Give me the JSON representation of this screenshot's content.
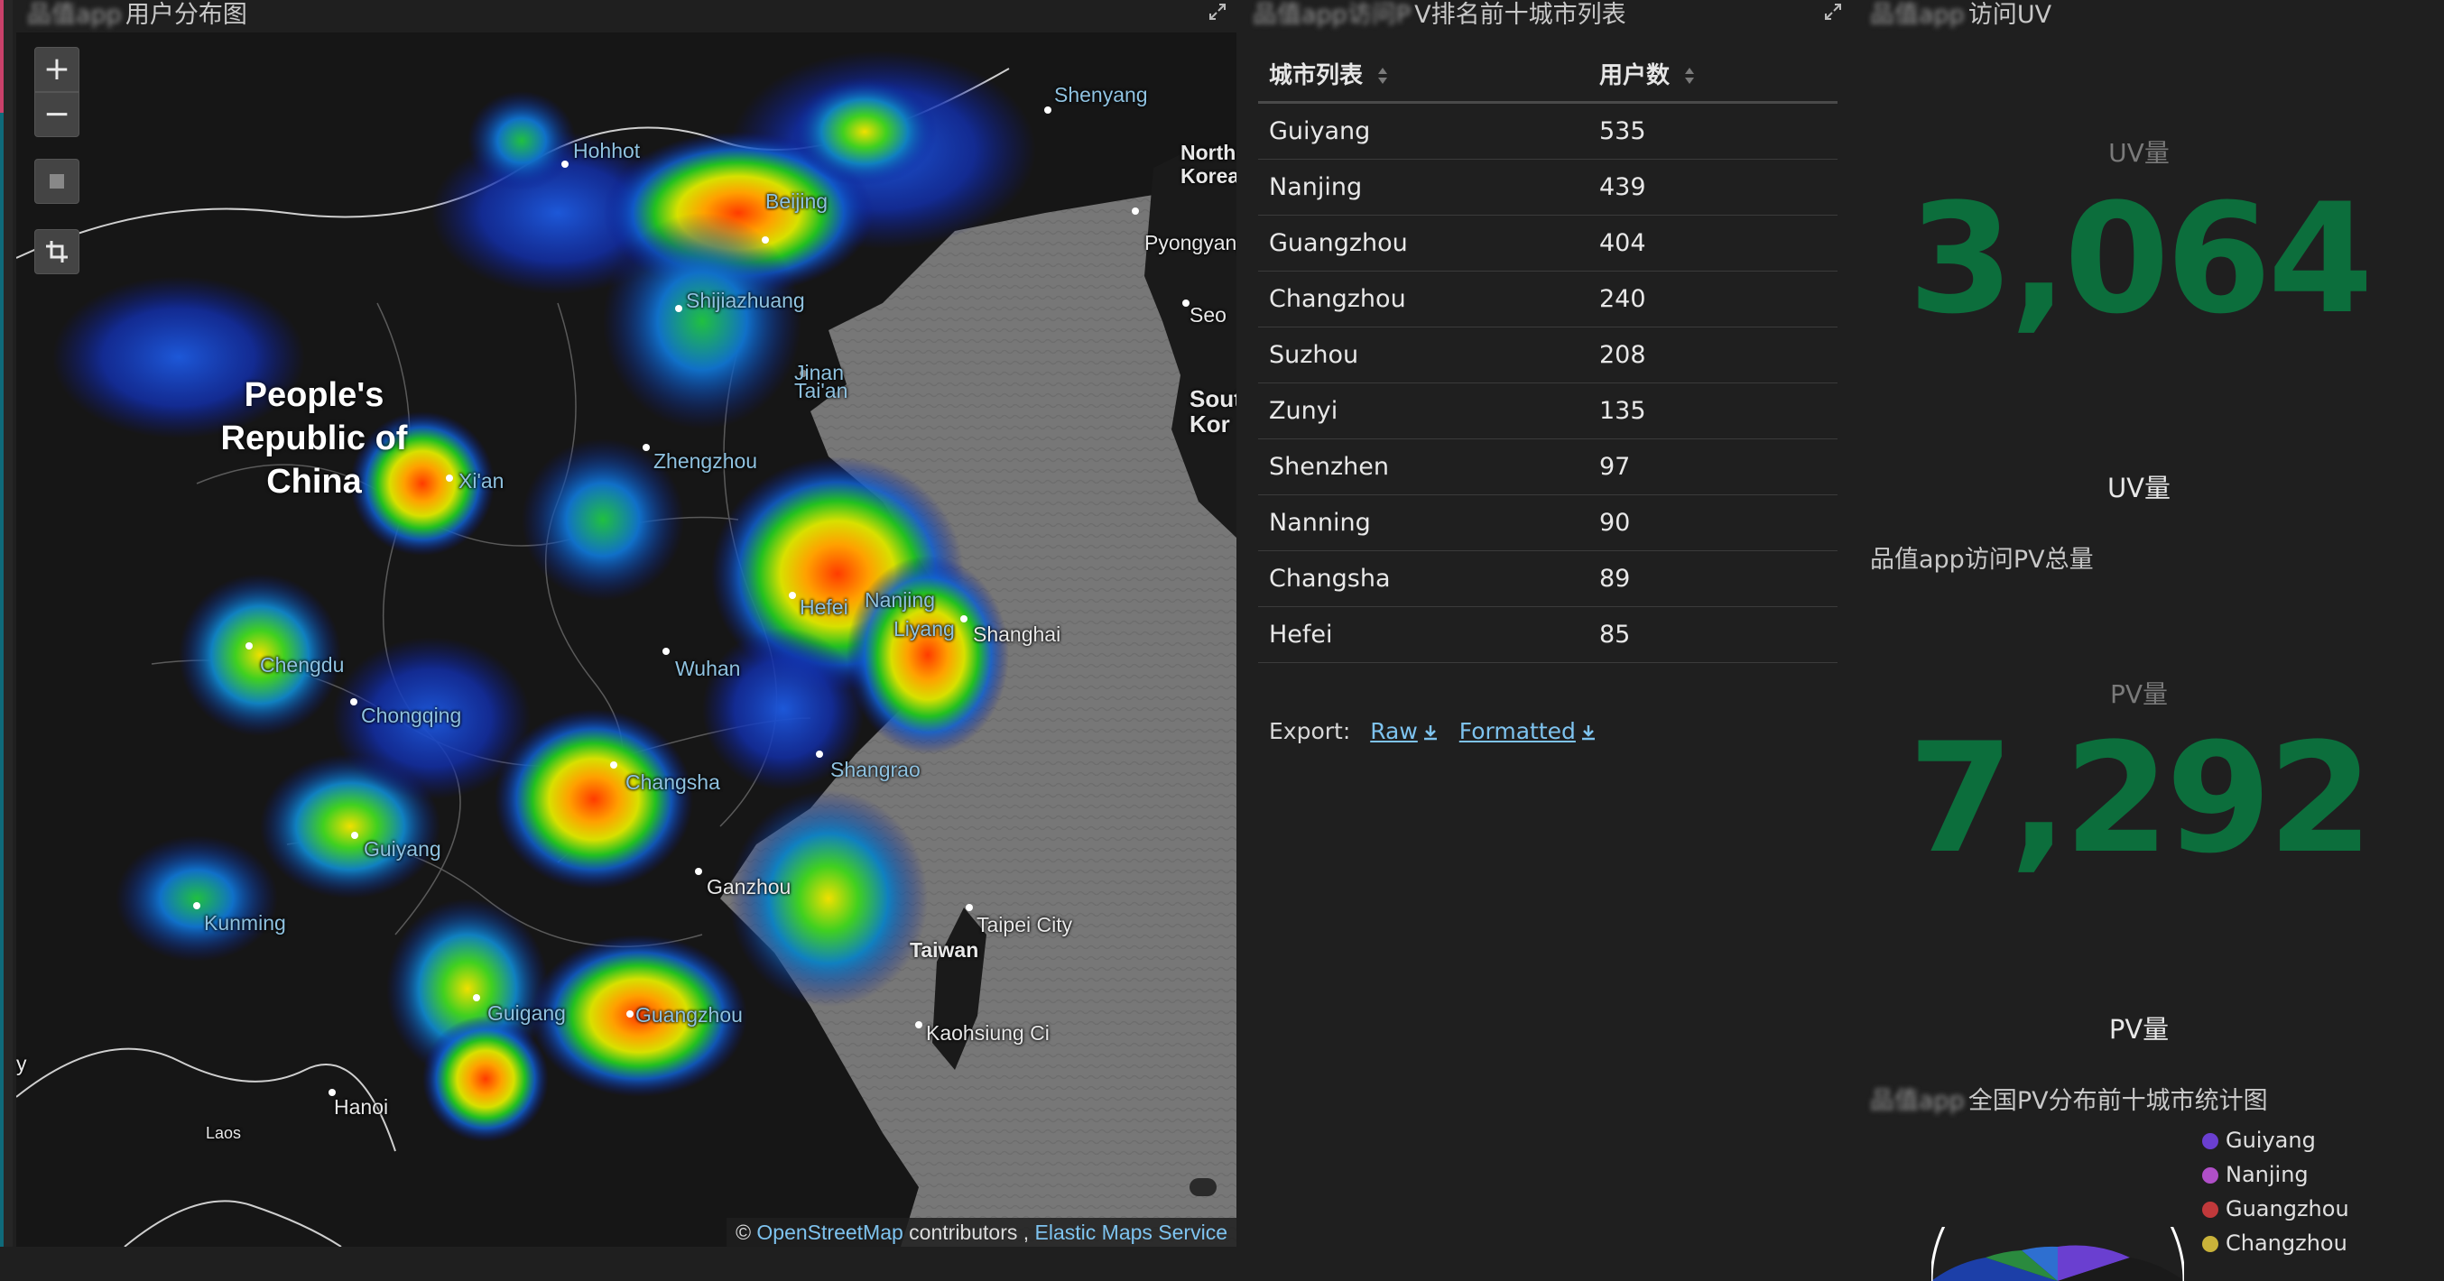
{
  "panels": {
    "map_title": "用户分布图",
    "map_title_blur": "品值app",
    "table_title": "V排名前十城市列表",
    "table_title_blur": "品值app访问P",
    "uv_title": "访问UV",
    "uv_title_blur": "品值app"
  },
  "map": {
    "controls": {
      "zoom_in": "+",
      "zoom_out": "−"
    },
    "country": [
      "People's",
      "Republic of",
      "China"
    ],
    "cities": [
      {
        "name": "Hohhot",
        "cls": "minor"
      },
      {
        "name": "Shenyang",
        "cls": "minor"
      },
      {
        "name": "North Korea",
        "cls": "bold"
      },
      {
        "name": "Beijing",
        "cls": "minor"
      },
      {
        "name": "Pyongyang",
        "cls": ""
      },
      {
        "name": "Shijiazhuang",
        "cls": "minor"
      },
      {
        "name": "Seo",
        "cls": ""
      },
      {
        "name": "Jinan",
        "cls": "minor"
      },
      {
        "name": "Tai'an",
        "cls": "minor"
      },
      {
        "name": "South Kor",
        "cls": "bold"
      },
      {
        "name": "Xi'an",
        "cls": "minor"
      },
      {
        "name": "Zhengzhou",
        "cls": "minor"
      },
      {
        "name": "Hefei",
        "cls": "minor"
      },
      {
        "name": "Nanjing",
        "cls": "minor"
      },
      {
        "name": "Liyang",
        "cls": "minor"
      },
      {
        "name": "Shanghai",
        "cls": ""
      },
      {
        "name": "Chengdu",
        "cls": "minor"
      },
      {
        "name": "Wuhan",
        "cls": "minor"
      },
      {
        "name": "Chongqing",
        "cls": "minor"
      },
      {
        "name": "Shangrao",
        "cls": "minor"
      },
      {
        "name": "Changsha",
        "cls": "minor"
      },
      {
        "name": "Guiyang",
        "cls": "minor"
      },
      {
        "name": "Ganzhou",
        "cls": ""
      },
      {
        "name": "Kunming",
        "cls": "minor"
      },
      {
        "name": "Taipei City",
        "cls": ""
      },
      {
        "name": "Taiwan",
        "cls": "bold"
      },
      {
        "name": "Guigang",
        "cls": "minor"
      },
      {
        "name": "Guangzhou",
        "cls": "minor"
      },
      {
        "name": "Kaohsiung Ci",
        "cls": ""
      },
      {
        "name": "Hanoi",
        "cls": ""
      },
      {
        "name": "Laos",
        "cls": ""
      },
      {
        "name": "y",
        "cls": ""
      }
    ],
    "attribution": {
      "prefix": "© ",
      "osm": "OpenStreetMap",
      "mid": " contributors , ",
      "ems": "Elastic Maps Service"
    }
  },
  "table": {
    "col_city": "城市列表",
    "col_users": "用户数",
    "rows": [
      {
        "city": "Guiyang",
        "users": "535"
      },
      {
        "city": "Nanjing",
        "users": "439"
      },
      {
        "city": "Guangzhou",
        "users": "404"
      },
      {
        "city": "Changzhou",
        "users": "240"
      },
      {
        "city": "Suzhou",
        "users": "208"
      },
      {
        "city": "Zunyi",
        "users": "135"
      },
      {
        "city": "Shenzhen",
        "users": "97"
      },
      {
        "city": "Nanning",
        "users": "90"
      },
      {
        "city": "Changsha",
        "users": "89"
      },
      {
        "city": "Hefei",
        "users": "85"
      }
    ],
    "export_label": "Export:",
    "export_raw": "Raw",
    "export_formatted": "Formatted"
  },
  "uv": {
    "caption": "UV量",
    "value": "3,064",
    "label": "UV量"
  },
  "pv_section": {
    "title": "品值app访问PV总量"
  },
  "pv": {
    "caption": "PV量",
    "value": "7,292",
    "label": "PV量"
  },
  "pie_section": {
    "title": "全国PV分布前十城市统计图",
    "title_blur": "品值app"
  },
  "legend": [
    {
      "name": "Guiyang",
      "color": "#6a3fd0"
    },
    {
      "name": "Nanjing",
      "color": "#b04fc8"
    },
    {
      "name": "Guangzhou",
      "color": "#c0393b"
    },
    {
      "name": "Changzhou",
      "color": "#c9b23a"
    }
  ]
}
